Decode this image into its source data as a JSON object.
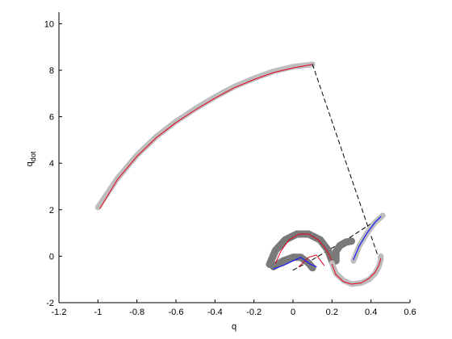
{
  "chart_data": {
    "type": "line",
    "title": "",
    "xlabel": "q",
    "ylabel_main": "q",
    "ylabel_sub": "dot",
    "xlim": [
      -1.2,
      0.6
    ],
    "ylim": [
      -2,
      10.5
    ],
    "xticks": [
      -1.2,
      -1,
      -0.8,
      -0.6,
      -0.4,
      -0.2,
      0,
      0.2,
      0.4,
      0.6
    ],
    "xtick_labels": [
      "-1.2",
      "-1",
      "-0.8",
      "-0.6",
      "-0.4",
      "-0.2",
      "0",
      "0.2",
      "0.4",
      "0.6"
    ],
    "yticks": [
      -2,
      0,
      2,
      4,
      6,
      8,
      10
    ],
    "ytick_labels": [
      "-2",
      "0",
      "2",
      "4",
      "6",
      "8",
      "10"
    ],
    "grid": false,
    "colors": {
      "tube_light": "#bdbdbd",
      "tube_dark": "#7a7a7a",
      "red": "#e8001c",
      "blue": "#1a1aff",
      "dashed": "#000000"
    },
    "series": [
      {
        "style": "tube_light",
        "x": [
          -1.0,
          -0.9,
          -0.8,
          -0.7,
          -0.6,
          -0.5,
          -0.4,
          -0.3,
          -0.2,
          -0.1,
          0.0,
          0.1
        ],
        "y": [
          2.1,
          3.35,
          4.35,
          5.15,
          5.8,
          6.35,
          6.85,
          7.3,
          7.65,
          7.95,
          8.15,
          8.25
        ]
      },
      {
        "style": "red",
        "x": [
          -0.99,
          -0.9,
          -0.8,
          -0.7,
          -0.6,
          -0.5,
          -0.4,
          -0.3,
          -0.2,
          -0.1,
          0.0,
          0.1
        ],
        "y": [
          2.05,
          3.3,
          4.3,
          5.1,
          5.75,
          6.3,
          6.8,
          7.25,
          7.6,
          7.9,
          8.1,
          8.25
        ]
      },
      {
        "style": "dashed",
        "x": [
          0.1,
          0.44
        ],
        "y": [
          8.25,
          -0.1
        ]
      },
      {
        "style": "dashed",
        "x": [
          0.0,
          0.1,
          0.2,
          0.3,
          0.4,
          0.45
        ],
        "y": [
          -0.6,
          -0.15,
          0.35,
          0.85,
          1.4,
          1.65
        ]
      },
      {
        "style": "tube_dark",
        "x": [
          -0.12,
          -0.09,
          -0.04,
          0.02,
          0.08,
          0.14,
          0.18,
          0.2
        ],
        "y": [
          -0.35,
          0.25,
          0.7,
          0.95,
          0.95,
          0.7,
          0.25,
          -0.2
        ]
      },
      {
        "style": "tube_dark",
        "x": [
          0.22,
          0.22,
          0.24,
          0.27,
          0.3
        ],
        "y": [
          -0.2,
          0.2,
          0.45,
          0.6,
          0.65
        ]
      },
      {
        "style": "tube_dark",
        "x": [
          -0.1,
          -0.05,
          0.0,
          0.04,
          0.08,
          0.1
        ],
        "y": [
          -0.45,
          -0.2,
          -0.05,
          -0.05,
          -0.3,
          -0.5
        ]
      },
      {
        "style": "red",
        "x": [
          -0.09,
          -0.06,
          -0.02,
          0.03,
          0.08,
          0.13,
          0.17,
          0.2,
          0.22
        ],
        "y": [
          -0.3,
          0.25,
          0.7,
          0.95,
          0.95,
          0.7,
          0.3,
          -0.2,
          -0.7
        ]
      },
      {
        "style": "red",
        "x": [
          0.03,
          0.08,
          0.12,
          0.16
        ],
        "y": [
          -0.45,
          -0.05,
          0.05,
          -0.4
        ]
      },
      {
        "style": "blue",
        "x": [
          -0.1,
          -0.05,
          0.0,
          0.04,
          0.09,
          0.12
        ],
        "y": [
          -0.55,
          -0.4,
          -0.2,
          -0.05,
          -0.35,
          -0.45
        ]
      },
      {
        "style": "tube_light",
        "x": [
          0.31,
          0.34,
          0.38,
          0.42,
          0.46
        ],
        "y": [
          -0.2,
          0.45,
          1.0,
          1.45,
          1.75
        ]
      },
      {
        "style": "blue",
        "x": [
          0.31,
          0.34,
          0.38,
          0.42,
          0.45
        ],
        "y": [
          -0.15,
          0.45,
          1.0,
          1.45,
          1.7
        ]
      },
      {
        "style": "tube_light",
        "x": [
          0.2,
          0.22,
          0.26,
          0.3,
          0.35,
          0.39,
          0.42,
          0.44,
          0.45,
          0.45
        ],
        "y": [
          -0.3,
          -0.75,
          -1.05,
          -1.2,
          -1.15,
          -1.0,
          -0.75,
          -0.45,
          -0.15,
          0.0
        ]
      },
      {
        "style": "red",
        "x": [
          0.2,
          0.22,
          0.26,
          0.3,
          0.35,
          0.39,
          0.42,
          0.44,
          0.45
        ],
        "y": [
          -0.35,
          -0.8,
          -1.1,
          -1.2,
          -1.15,
          -0.95,
          -0.7,
          -0.4,
          -0.1
        ]
      }
    ]
  }
}
